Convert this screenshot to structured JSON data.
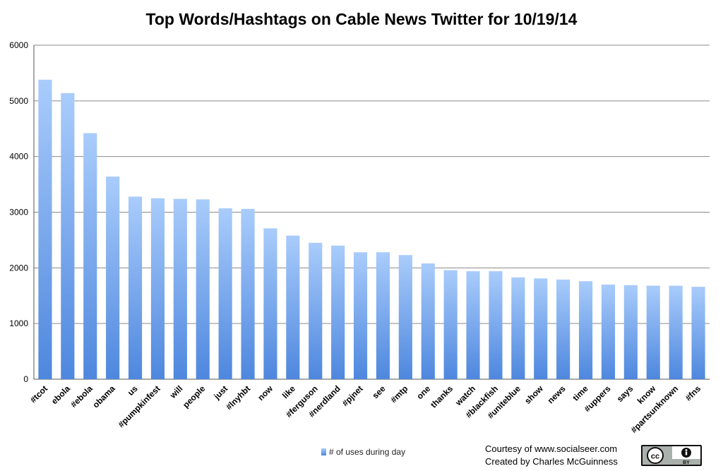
{
  "chart_data": {
    "type": "bar",
    "title": "Top Words/Hashtags on Cable News Twitter for 10/19/14",
    "xlabel": "",
    "ylabel": "",
    "ylim": [
      0,
      6000
    ],
    "yticks": [
      0,
      1000,
      2000,
      3000,
      4000,
      5000,
      6000
    ],
    "grid": true,
    "legend_position": "bottom",
    "categories": [
      "#tcot",
      "ebola",
      "#ebola",
      "obama",
      "us",
      "#pumpkinfest",
      "will",
      "people",
      "just",
      "#lnyhbt",
      "now",
      "like",
      "#ferguson",
      "#nerdland",
      "#pjnet",
      "see",
      "#mtp",
      "one",
      "thanks",
      "watch",
      "#blackfish",
      "#uniteblue",
      "show",
      "news",
      "time",
      "#uppers",
      "says",
      "know",
      "#partsunknown",
      "#fns"
    ],
    "series": [
      {
        "name": "# of uses during day",
        "color_top": "#a9ccfb",
        "color_bottom": "#4e87de",
        "values": [
          5380,
          5140,
          4420,
          3640,
          3280,
          3250,
          3240,
          3230,
          3070,
          3060,
          2710,
          2580,
          2450,
          2400,
          2280,
          2280,
          2230,
          2080,
          1960,
          1940,
          1940,
          1830,
          1810,
          1790,
          1760,
          1700,
          1690,
          1680,
          1680,
          1660
        ]
      }
    ]
  },
  "credit": {
    "line1": "Courtesy of www.socialseer.com",
    "line2": "Created by Charles McGuinness"
  },
  "badge": {
    "icon": "creative-commons-by-icon",
    "text": "BY"
  }
}
